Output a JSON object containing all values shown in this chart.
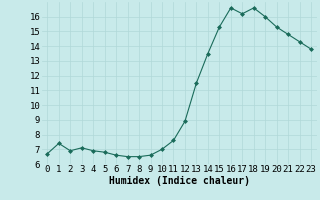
{
  "x": [
    0,
    1,
    2,
    3,
    4,
    5,
    6,
    7,
    8,
    9,
    10,
    11,
    12,
    13,
    14,
    15,
    16,
    17,
    18,
    19,
    20,
    21,
    22,
    23
  ],
  "y": [
    6.7,
    7.4,
    6.9,
    7.1,
    6.9,
    6.8,
    6.6,
    6.5,
    6.5,
    6.6,
    7.0,
    7.6,
    8.9,
    11.5,
    13.5,
    15.3,
    16.6,
    16.2,
    16.6,
    16.0,
    15.3,
    14.8,
    14.3,
    13.8
  ],
  "line_color": "#1a6b5a",
  "marker": "D",
  "marker_size": 2.0,
  "bg_color": "#c8eaea",
  "grid_color": "#b0d8d8",
  "xlabel": "Humidex (Indice chaleur)",
  "xlabel_fontsize": 7,
  "tick_fontsize": 6.5,
  "ylim": [
    6,
    17
  ],
  "xlim": [
    -0.5,
    23.5
  ],
  "yticks": [
    6,
    7,
    8,
    9,
    10,
    11,
    12,
    13,
    14,
    15,
    16
  ],
  "xticks": [
    0,
    1,
    2,
    3,
    4,
    5,
    6,
    7,
    8,
    9,
    10,
    11,
    12,
    13,
    14,
    15,
    16,
    17,
    18,
    19,
    20,
    21,
    22,
    23
  ]
}
